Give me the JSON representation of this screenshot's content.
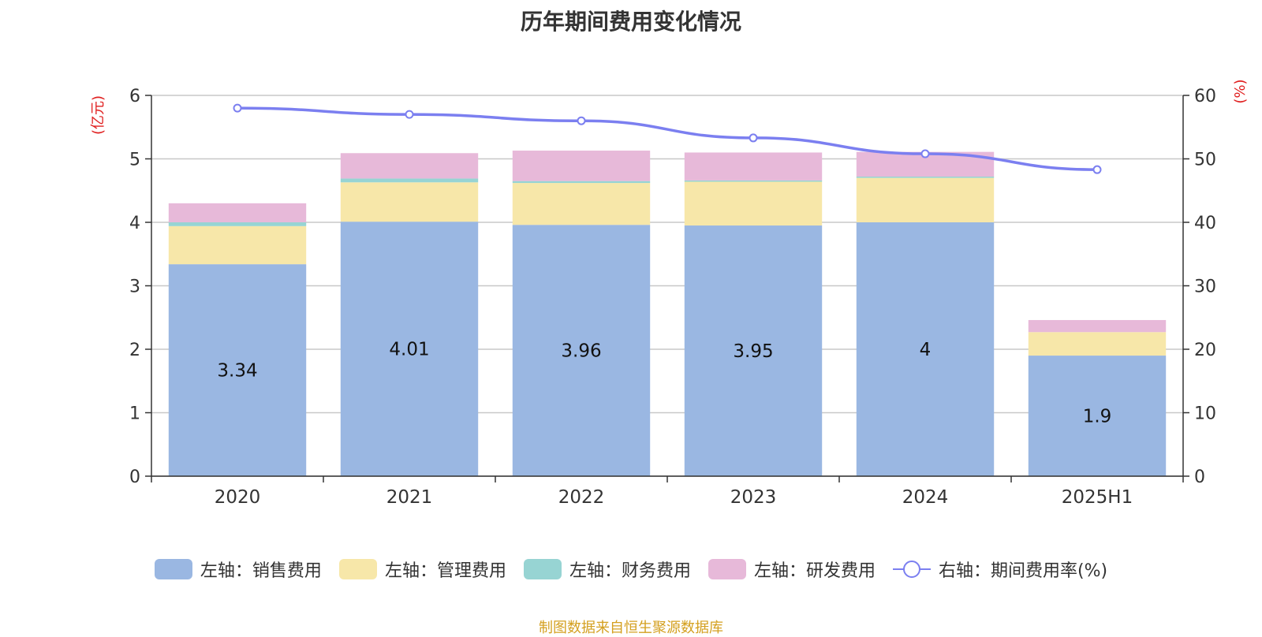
{
  "chart_data": {
    "type": "bar",
    "title": "历年期间费用变化情况",
    "categories": [
      "2020",
      "2021",
      "2022",
      "2023",
      "2024",
      "2025H1"
    ],
    "y_left_label": "(亿元)",
    "y_right_label": "(%)",
    "ylim_left": [
      0,
      6
    ],
    "ylim_right": [
      0,
      60
    ],
    "y_left_ticks": [
      0,
      1,
      2,
      3,
      4,
      5,
      6
    ],
    "y_right_ticks": [
      0,
      10,
      20,
      30,
      40,
      50,
      60
    ],
    "grid": true,
    "legend_position": "bottom",
    "stacked_series": [
      {
        "name": "左轴：销售费用",
        "color": "#9ab7e2",
        "values": [
          3.34,
          4.01,
          3.96,
          3.95,
          4.0,
          1.9
        ],
        "labels": [
          "3.34",
          "4.01",
          "3.96",
          "3.95",
          "4",
          "1.9"
        ]
      },
      {
        "name": "左轴：管理费用",
        "color": "#f7e7a9",
        "values": [
          0.6,
          0.62,
          0.66,
          0.69,
          0.7,
          0.37
        ]
      },
      {
        "name": "左轴：财务费用",
        "color": "#97d4d3",
        "values": [
          0.06,
          0.06,
          0.03,
          0.02,
          0.02,
          0.0
        ]
      },
      {
        "name": "左轴：研发费用",
        "color": "#e7b9d9",
        "values": [
          0.3,
          0.4,
          0.48,
          0.44,
          0.39,
          0.19
        ]
      }
    ],
    "line_series": {
      "name": "右轴：期间费用率(%)",
      "color": "#7b7ff0",
      "values": [
        58.0,
        57.0,
        56.0,
        53.3,
        50.8,
        48.3
      ]
    }
  },
  "source_text": "制图数据来自恒生聚源数据库"
}
